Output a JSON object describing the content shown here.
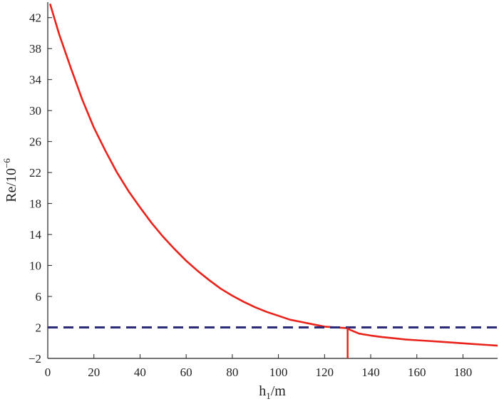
{
  "chart_data": {
    "type": "line",
    "xlabel": {
      "main": "h",
      "sub": "1",
      "rest": "/m"
    },
    "ylabel": {
      "main": "Re/10",
      "sup": "−6"
    },
    "xlim": [
      0,
      195
    ],
    "ylim": [
      -2,
      44
    ],
    "x_ticks": [
      0,
      20,
      40,
      60,
      80,
      100,
      120,
      140,
      160,
      180
    ],
    "x_tick_labels": [
      "0",
      "20",
      "40",
      "60",
      "80",
      "100",
      "120",
      "140",
      "160",
      "180"
    ],
    "y_ticks": [
      -2,
      2,
      6,
      10,
      14,
      18,
      22,
      26,
      30,
      34,
      38,
      42
    ],
    "y_tick_labels": [
      "−2",
      "2",
      "6",
      "10",
      "14",
      "18",
      "22",
      "26",
      "30",
      "34",
      "38",
      "42"
    ],
    "series": [
      {
        "color": "#e8231b",
        "style": "solid",
        "x": [
          1,
          5,
          10,
          15,
          20,
          25,
          30,
          35,
          40,
          45,
          50,
          55,
          60,
          65,
          70,
          75,
          80,
          85,
          90,
          95,
          100,
          105,
          110,
          115,
          120,
          125,
          130,
          131,
          135,
          140,
          145,
          150,
          155,
          160,
          165,
          170,
          175,
          180,
          185,
          190,
          195
        ],
        "y": [
          43.8,
          39.8,
          35.5,
          31.4,
          27.8,
          24.8,
          22.0,
          19.6,
          17.5,
          15.5,
          13.7,
          12.1,
          10.6,
          9.3,
          8.1,
          7.0,
          6.1,
          5.3,
          4.6,
          4.0,
          3.5,
          3.0,
          2.7,
          2.4,
          2.1,
          2.0,
          1.9,
          1.7,
          1.2,
          0.95,
          0.75,
          0.6,
          0.45,
          0.35,
          0.25,
          0.15,
          0.05,
          -0.05,
          -0.15,
          -0.25,
          -0.35
        ]
      }
    ],
    "reference_lines": [
      {
        "orientation": "horizontal",
        "y": 2,
        "color": "#2b2b7a",
        "style": "dashed"
      },
      {
        "orientation": "vertical",
        "x": 130,
        "y_from": -2,
        "y_to": 2,
        "color": "#e8231b",
        "style": "solid"
      }
    ],
    "grid": false,
    "legend": "none"
  }
}
